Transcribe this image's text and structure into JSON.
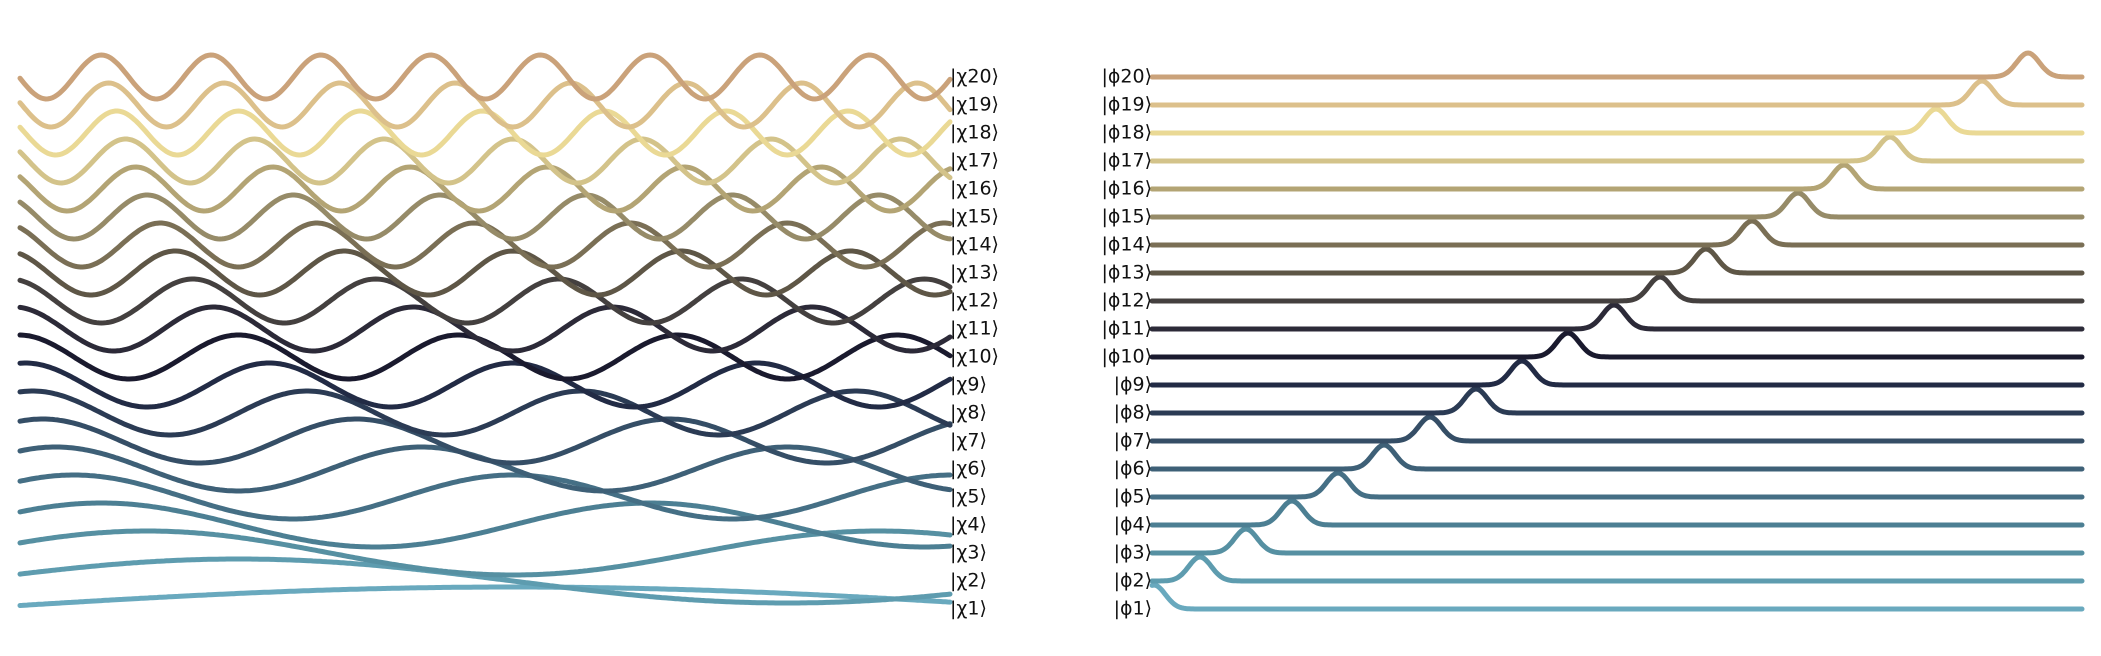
{
  "left_panel": {
    "labels": [
      "|χ1⟩",
      "|χ2⟩",
      "|χ3⟩",
      "|χ4⟩",
      "|χ5⟩",
      "|χ6⟩",
      "|χ7⟩",
      "|χ8⟩",
      "|χ9⟩",
      "|χ10⟩",
      "|χ11⟩",
      "|χ12⟩",
      "|χ13⟩",
      "|χ14⟩",
      "|χ15⟩",
      "|χ16⟩",
      "|χ17⟩",
      "|χ18⟩",
      "|χ19⟩",
      "|χ20⟩"
    ]
  },
  "right_panel": {
    "labels": [
      "|ϕ1⟩",
      "|ϕ2⟩",
      "|ϕ3⟩",
      "|ϕ4⟩",
      "|ϕ5⟩",
      "|ϕ6⟩",
      "|ϕ7⟩",
      "|ϕ8⟩",
      "|ϕ9⟩",
      "|ϕ10⟩",
      "|ϕ11⟩",
      "|ϕ12⟩",
      "|ϕ13⟩",
      "|ϕ14⟩",
      "|ϕ15⟩",
      "|ϕ16⟩",
      "|ϕ17⟩",
      "|ϕ18⟩",
      "|ϕ19⟩",
      "|ϕ20⟩"
    ]
  },
  "colors": [
    "#69a9be",
    "#5e9caf",
    "#5690a2",
    "#4c7f93",
    "#456f85",
    "#3e6077",
    "#354e66",
    "#2b3b54",
    "#222b45",
    "#1a1a2e",
    "#2c2a38",
    "#44403f",
    "#5e5646",
    "#7a6f55",
    "#968b68",
    "#b3a474",
    "#d3c38a",
    "#ead995",
    "#dcc08b",
    "#caa27a"
  ]
}
